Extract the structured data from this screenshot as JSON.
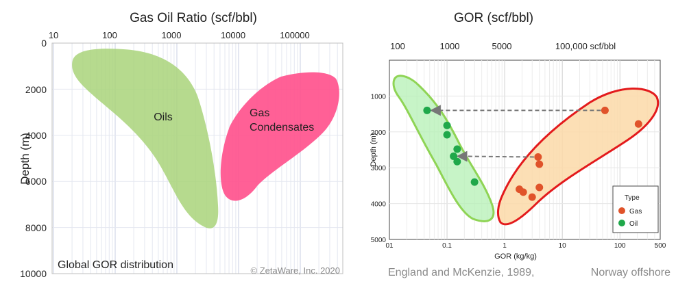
{
  "chart_data": [
    {
      "type": "area",
      "title": "Gas Oil Ratio (scf/bbl)",
      "ylabel": "Depth (m)",
      "x_scale": "log",
      "x_ticks": [
        "10",
        "100",
        "1000",
        "10000",
        "100000"
      ],
      "y_ticks": [
        "0",
        "2000",
        "4000",
        "6000",
        "8000",
        "10000"
      ],
      "ylim": [
        10000,
        0
      ],
      "regions": [
        {
          "name": "Oils",
          "label": "Oils",
          "color": "#a9d47a",
          "gor_range": [
            25,
            4000
          ],
          "depth_range": [
            300,
            7800
          ]
        },
        {
          "name": "Gas Condensates",
          "label_line1": "Gas",
          "label_line2": "Condensates",
          "color": "#ff4f8b",
          "gor_range": [
            5000,
            500000
          ],
          "depth_range": [
            1200,
            6800
          ]
        }
      ],
      "footer_label": "Global GOR distribution",
      "copyright": "© ZetaWare, Inc. 2020"
    },
    {
      "type": "scatter",
      "title": "GOR (scf/bbl)",
      "top_axis_ticks": [
        "100",
        "1000",
        "5000",
        "100,000 scf/bbl"
      ],
      "xlabel": "GOR (kg/kg)",
      "ylabel": "Depth (m)",
      "x_scale": "log",
      "xlim": [
        0.01,
        500
      ],
      "x_ticks": [
        "01",
        "0.1",
        "1",
        "10",
        "100",
        "500"
      ],
      "ylim": [
        5000,
        0
      ],
      "y_ticks": [
        "1000",
        "2000",
        "3000",
        "4000",
        "5000"
      ],
      "legend_title": "Type",
      "legend_position": "bottom-right",
      "series": [
        {
          "name": "Gas",
          "color": "#e0532a",
          "points": [
            [
              55,
              1400
            ],
            [
              210,
              1780
            ],
            [
              3.8,
              2700
            ],
            [
              4.0,
              2900
            ],
            [
              4.0,
              3550
            ],
            [
              1.8,
              3600
            ],
            [
              2.1,
              3680
            ],
            [
              3.0,
              3820
            ]
          ]
        },
        {
          "name": "Oil",
          "color": "#1fa84a",
          "points": [
            [
              0.045,
              1400
            ],
            [
              0.1,
              1820
            ],
            [
              0.1,
              2080
            ],
            [
              0.15,
              2480
            ],
            [
              0.13,
              2680
            ],
            [
              0.15,
              2830
            ],
            [
              0.3,
              3400
            ]
          ]
        }
      ],
      "arrows": [
        [
          [
            55,
            1400
          ],
          [
            0.045,
            1400
          ]
        ],
        [
          [
            3.8,
            2700
          ],
          [
            0.13,
            2680
          ]
        ]
      ],
      "source_left": "England and McKenzie, 1989,",
      "source_right": "Norway offshore"
    }
  ]
}
